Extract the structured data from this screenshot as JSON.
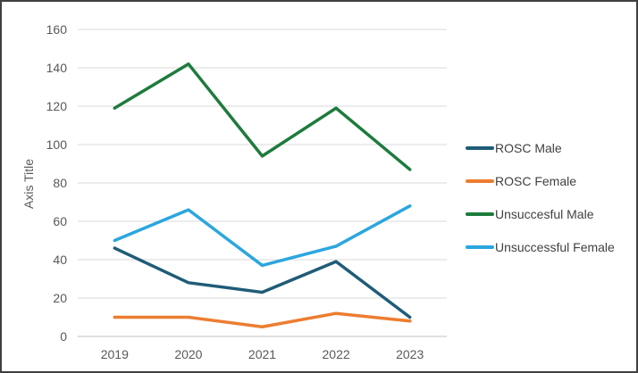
{
  "chart_data": {
    "type": "line",
    "title": "",
    "ylabel": "Axis Title",
    "xlabel": "",
    "categories": [
      "2019",
      "2020",
      "2021",
      "2022",
      "2023"
    ],
    "series": [
      {
        "name": "ROSC Male",
        "color": "#1F5C78",
        "values": [
          46,
          28,
          23,
          39,
          10
        ]
      },
      {
        "name": "ROSC Female",
        "color": "#ED7D31",
        "values": [
          10,
          10,
          5,
          12,
          8
        ]
      },
      {
        "name": "Unsuccesful Male",
        "color": "#1E7B3C",
        "values": [
          119,
          142,
          94,
          119,
          87
        ]
      },
      {
        "name": "Unsuccessful Female",
        "color": "#2BA6DF",
        "values": [
          50,
          66,
          37,
          47,
          68
        ]
      }
    ],
    "ylim": [
      0,
      160
    ],
    "y_ticks": [
      0,
      20,
      40,
      60,
      80,
      100,
      120,
      140,
      160
    ],
    "grid": true,
    "legend_position": "right"
  },
  "colors": {
    "grid_line": "#D9D9D9",
    "axis_line": "#BFBFBF",
    "axis_text": "#595959",
    "legend_text": "#404040",
    "frame_border": "#404040",
    "background": "#FFFFFF"
  }
}
